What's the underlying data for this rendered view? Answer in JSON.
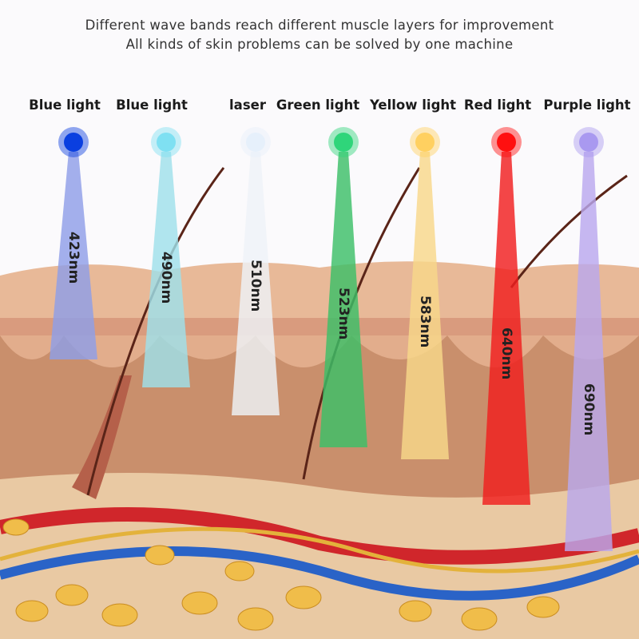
{
  "header": {
    "line1": "Different wave bands reach different muscle layers for improvement",
    "line2": "All kinds of skin problems can be solved by one machine"
  },
  "lights": [
    {
      "label": "Blue light",
      "wavelength": "423nm",
      "color": "#0a3fe0",
      "beam": "#8f9fe8"
    },
    {
      "label": "Blue light",
      "wavelength": "490nm",
      "color": "#7fe0f2",
      "beam": "#9fe0ea"
    },
    {
      "label": "laser",
      "wavelength": "510nm",
      "color": "#e6f0fb",
      "beam": "#eef3f8"
    },
    {
      "label": "Green light",
      "wavelength": "523nm",
      "color": "#2fd57a",
      "beam": "#3cc068"
    },
    {
      "label": "Yellow light",
      "wavelength": "583nm",
      "color": "#ffd060",
      "beam": "#f8d88a"
    },
    {
      "label": "Red light",
      "wavelength": "640nm",
      "color": "#ff1010",
      "beam": "#f01e1e"
    },
    {
      "label": "Purple light",
      "wavelength": "690nm",
      "color": "#a999f0",
      "beam": "#b9a8ee"
    }
  ]
}
